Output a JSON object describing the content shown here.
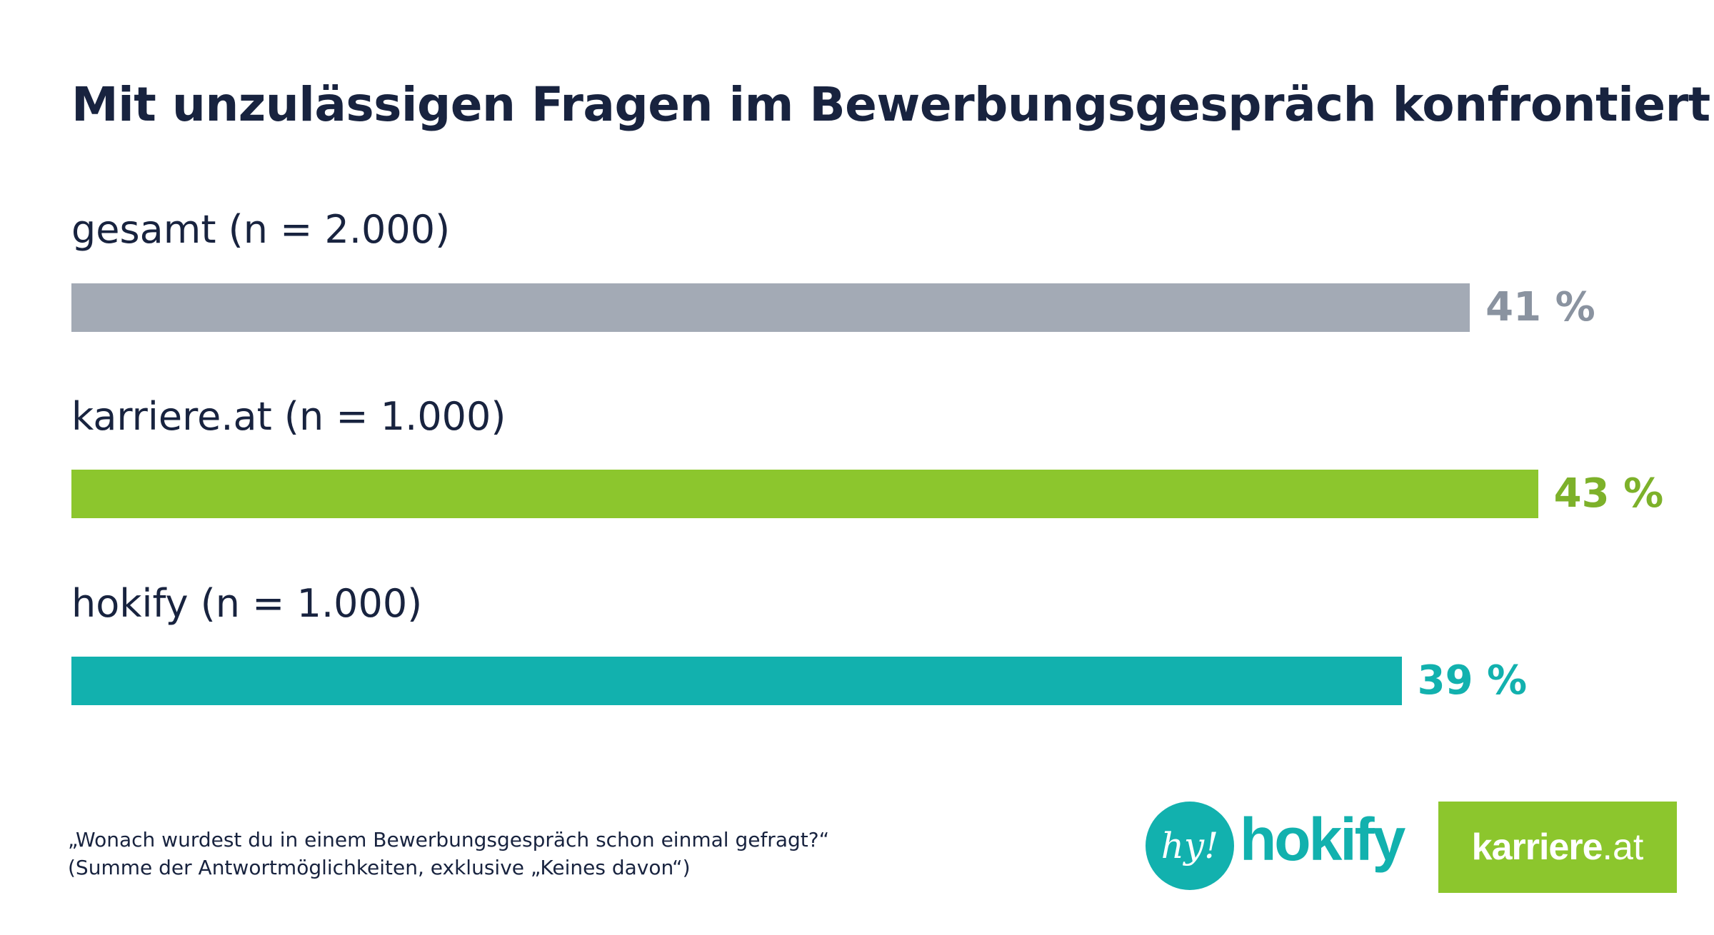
{
  "title": "Mit unzulässigen Fragen im Bewerbungsgespräch konfrontiert",
  "chart_data": {
    "type": "bar",
    "orientation": "horizontal",
    "categories": [
      "gesamt (n = 2.000)",
      "karriere.at (n = 1.000)",
      "hokify (n = 1.000)"
    ],
    "values": [
      41,
      43,
      39
    ],
    "value_labels": [
      "41 %",
      "43 %",
      "39 %"
    ],
    "unit": "%",
    "colors": [
      "#a3aab5",
      "#8cc62d",
      "#12b1ae"
    ],
    "label_colors": [
      "#8a93a0",
      "#7db12a",
      "#12b1ae"
    ],
    "grid": false
  },
  "footnote": {
    "line1": "„Wonach wurdest du in einem Bewerbungsgespräch schon einmal gefragt?“",
    "line2": "(Summe der Antwortmöglichkeiten, exklusive „Keines davon“)"
  },
  "logos": {
    "hokify_badge": "hy!",
    "hokify_name": "hokify",
    "karriere_main": "karriere",
    "karriere_suffix": ".at"
  }
}
